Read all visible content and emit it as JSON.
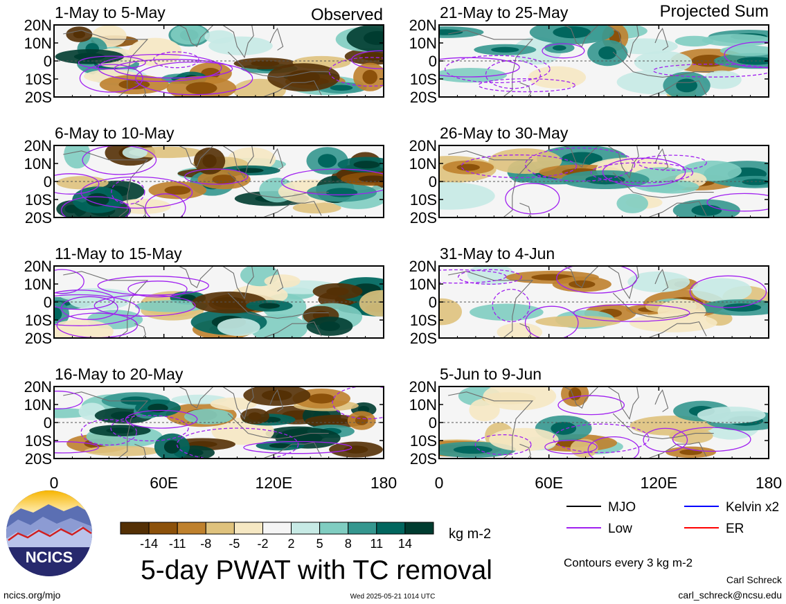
{
  "chart_data": {
    "type": "heatmap",
    "title": "5-day PWAT with TC removal",
    "units": "kg m-2",
    "contour_note": "Contours every 3 kg m-2",
    "section_labels": {
      "observed": "Observed",
      "projected": "Projected Sum"
    },
    "y_ticks": [
      "20N",
      "10N",
      "0",
      "10S",
      "20S"
    ],
    "x_ticks": [
      "0",
      "60E",
      "120E",
      "180"
    ],
    "ylim": [
      -20,
      20
    ],
    "xlim": [
      0,
      180
    ],
    "panels": [
      {
        "title": "1-May to 5-May",
        "column": "left",
        "row": 0,
        "kind": "observed"
      },
      {
        "title": "6-May to 10-May",
        "column": "left",
        "row": 1,
        "kind": "observed"
      },
      {
        "title": "11-May to 15-May",
        "column": "left",
        "row": 2,
        "kind": "observed"
      },
      {
        "title": "16-May to 20-May",
        "column": "left",
        "row": 3,
        "kind": "observed"
      },
      {
        "title": "21-May to 25-May",
        "column": "right",
        "row": 0,
        "kind": "projected"
      },
      {
        "title": "26-May to 30-May",
        "column": "right",
        "row": 1,
        "kind": "projected"
      },
      {
        "title": "31-May to 4-Jun",
        "column": "right",
        "row": 2,
        "kind": "projected"
      },
      {
        "title": "5-Jun to 9-Jun",
        "column": "right",
        "row": 3,
        "kind": "projected"
      }
    ],
    "colorbar": {
      "tick_labels": [
        "-14",
        "-11",
        "-8",
        "-5",
        "-2",
        "2",
        "5",
        "8",
        "11",
        "14"
      ],
      "colors": [
        "#543005",
        "#8c510a",
        "#bf812d",
        "#dfc27d",
        "#f6e8c3",
        "#f5f5f5",
        "#c7eae5",
        "#80cdc1",
        "#35978f",
        "#01665e",
        "#003c30"
      ]
    },
    "legend": [
      {
        "label": "MJO",
        "color": "#000000"
      },
      {
        "label": "Kelvin x2",
        "color": "#0000ff"
      },
      {
        "label": "Low",
        "color": "#a020f0"
      },
      {
        "label": "ER",
        "color": "#ff0000"
      }
    ]
  },
  "logo": {
    "text": "NCICS"
  },
  "footer": {
    "url": "ncics.org/mjo",
    "timestamp": "Wed 2025-05-21 1014 UTC",
    "author": "Carl Schreck",
    "email": "carl_schreck@ncsu.edu"
  }
}
